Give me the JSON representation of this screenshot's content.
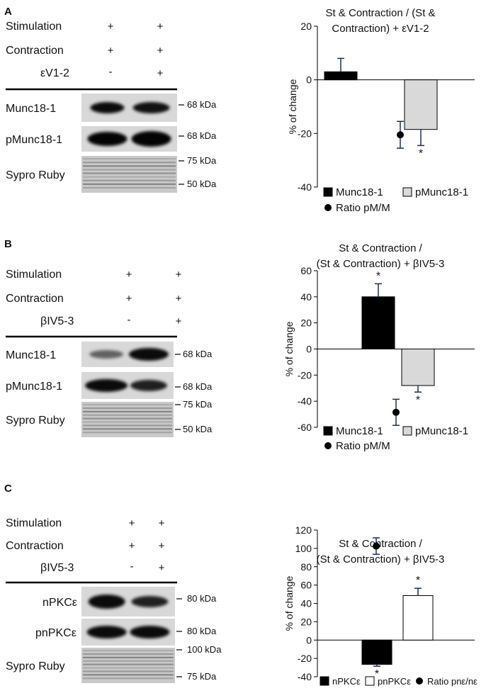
{
  "panels": [
    {
      "label": "A",
      "blot": {
        "rows": [
          {
            "label": "Stimulation",
            "lanes": [
              "+",
              "+"
            ]
          },
          {
            "label": "Contraction",
            "lanes": [
              "+",
              "+"
            ]
          },
          {
            "label": "εV1-2",
            "lanes": [
              "-",
              "+"
            ]
          }
        ],
        "bands": [
          {
            "name": "Munc18-1",
            "markers": [
              "68 kDa"
            ]
          },
          {
            "name": "pMunc18-1",
            "markers": [
              "68 kDa"
            ]
          },
          {
            "name": "Sypro Ruby",
            "markers": [
              "75 kDa",
              "50 kDa"
            ]
          }
        ]
      }
    },
    {
      "label": "B",
      "blot": {
        "rows": [
          {
            "label": "Stimulation",
            "lanes": [
              "+",
              "+"
            ]
          },
          {
            "label": "Contraction",
            "lanes": [
              "+",
              "+"
            ]
          },
          {
            "label": "βIV5-3",
            "lanes": [
              "-",
              "+"
            ]
          }
        ],
        "bands": [
          {
            "name": "Munc18-1",
            "markers": [
              "68 kDa"
            ]
          },
          {
            "name": "pMunc18-1",
            "markers": [
              "68 kDa"
            ]
          },
          {
            "name": "Sypro Ruby",
            "markers": [
              "75 kDa",
              "50 kDa"
            ]
          }
        ]
      }
    },
    {
      "label": "C",
      "blot": {
        "rows": [
          {
            "label": "Stimulation",
            "lanes": [
              "+",
              "+"
            ]
          },
          {
            "label": "Contraction",
            "lanes": [
              "+",
              "+"
            ]
          },
          {
            "label": "βIV5-3",
            "lanes": [
              "-",
              "+"
            ]
          }
        ],
        "bands": [
          {
            "name": "nPKCε",
            "markers": [
              "80 kDa"
            ]
          },
          {
            "name": "pnPKCε",
            "markers": [
              "80 kDa"
            ]
          },
          {
            "name": "Sypro Ruby",
            "markers": [
              "100 kDa",
              "75 kDa"
            ]
          }
        ]
      }
    }
  ],
  "chart_data": [
    {
      "type": "bar",
      "title": [
        "St & Contraction / (St &",
        "Contraction) + εV1-2"
      ],
      "ylabel": "% of change",
      "ylim": [
        -40,
        20
      ],
      "yticks": [
        20,
        0,
        -20,
        -40
      ],
      "grid": false,
      "series": [
        {
          "name": "Munc18-1",
          "value": 3,
          "error": 5,
          "fill": "#000000",
          "sig": ""
        },
        {
          "name": "pMunc18-1",
          "value": -18.5,
          "error": 6,
          "fill": "#d9d9d9",
          "sig": "*"
        }
      ],
      "points": [
        {
          "name": "Ratio pM/M",
          "value": -20.5,
          "error": 5
        }
      ],
      "legend_position": "bottom",
      "legend_rows": [
        [
          "Munc18-1",
          "pMunc18-1"
        ],
        [
          "Ratio pM/M"
        ]
      ]
    },
    {
      "type": "bar",
      "title": [
        "St & Contraction /",
        "(St & Contraction) + βIV5-3"
      ],
      "ylabel": "% of change",
      "ylim": [
        -60,
        60
      ],
      "yticks": [
        60,
        40,
        20,
        0,
        -20,
        -40,
        -60
      ],
      "grid": false,
      "series": [
        {
          "name": "Munc18-1",
          "value": 40,
          "error": 10,
          "fill": "#000000",
          "sig": "*"
        },
        {
          "name": "pMunc18-1",
          "value": -28,
          "error": 5,
          "fill": "#d9d9d9",
          "sig": "*"
        }
      ],
      "points": [
        {
          "name": "Ratio pM/M",
          "value": -48.5,
          "error": 10
        }
      ],
      "legend_position": "bottom",
      "legend_rows": [
        [
          "Munc18-1",
          "pMunc18-1"
        ],
        [
          "Ratio pM/M"
        ]
      ]
    },
    {
      "type": "bar",
      "title": [
        "St & Contraction /",
        "(St & Contraction) + βIV5-3"
      ],
      "ylabel": "% of change",
      "ylim": [
        -40,
        120
      ],
      "yticks": [
        120,
        100,
        80,
        60,
        40,
        20,
        0,
        -20,
        -40
      ],
      "grid": false,
      "series": [
        {
          "name": "nPKCε",
          "value": -26.5,
          "error": 2,
          "fill": "#000000",
          "sig": "*"
        },
        {
          "name": "pnPKCε",
          "value": 48.5,
          "error": 8,
          "fill": "#ffffff",
          "sig": "*"
        }
      ],
      "points": [
        {
          "name": "Ratio pnε/nε",
          "value": 102.5,
          "error": 9
        }
      ],
      "legend_position": "bottom",
      "legend_rows": [
        [
          "nPKCε",
          "pnPKCε",
          "Ratio pnε/nε"
        ]
      ]
    }
  ]
}
